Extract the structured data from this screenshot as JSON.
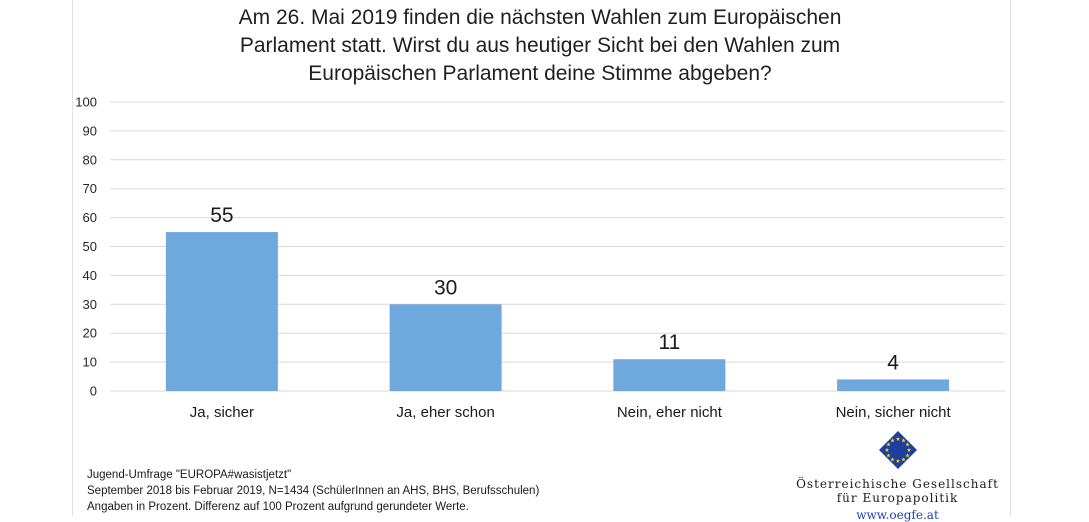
{
  "title_lines": [
    "Am 26. Mai 2019 finden die nächsten Wahlen zum Europäischen",
    "Parlament statt. Wirst du aus heutiger Sicht bei den Wahlen zum",
    "Europäischen Parlament deine Stimme abgeben?"
  ],
  "footnote_lines": [
    "Jugend-Umfrage \"EUROPA#wasistjetzt\"",
    "September 2018 bis Februar 2019, N=1434 (SchülerInnen an AHS, BHS, Berufsschulen)",
    "Angaben in Prozent. Differenz auf 100 Prozent aufgrund gerundeter Werte."
  ],
  "logo": {
    "name_line1": "Österreichische Gesellschaft",
    "name_line2": "für Europapolitik",
    "url": "www.oegfe.at"
  },
  "colors": {
    "bar": "#6fa8dc",
    "grid": "#d9d9d9",
    "logo_blue": "#1f3f9c",
    "logo_star": "#f2d21a"
  },
  "chart_data": {
    "type": "bar",
    "categories": [
      "Ja, sicher",
      "Ja, eher schon",
      "Nein, eher nicht",
      "Nein, sicher nicht"
    ],
    "values": [
      55,
      30,
      11,
      4
    ],
    "ylim": [
      0,
      100
    ],
    "yticks": [
      0,
      10,
      20,
      30,
      40,
      50,
      60,
      70,
      80,
      90,
      100
    ],
    "grid": true,
    "data_labels": true,
    "xlabel": "",
    "ylabel": ""
  }
}
